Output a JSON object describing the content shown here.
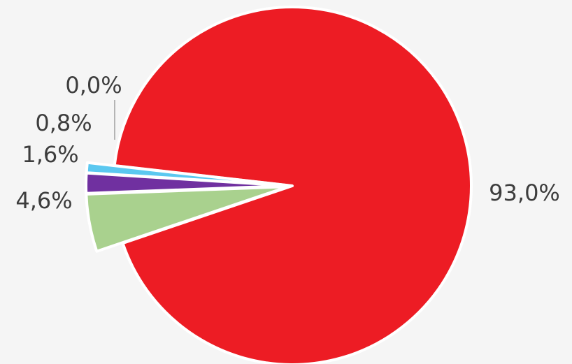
{
  "chart_data": {
    "type": "pie",
    "title": "",
    "categories": [
      "",
      "",
      "",
      "",
      ""
    ],
    "values": [
      93.0,
      4.6,
      1.6,
      0.8,
      0.0
    ],
    "labels": [
      "93,0%",
      "4,6%",
      "1,6%",
      "0,8%",
      "0,0%"
    ],
    "colors": [
      "#ed1c24",
      "#a9d18e",
      "#7030a0",
      "#5bc8f0",
      "#9e9e9e"
    ],
    "exploded": [
      false,
      true,
      true,
      true,
      true
    ],
    "legend": "none"
  }
}
